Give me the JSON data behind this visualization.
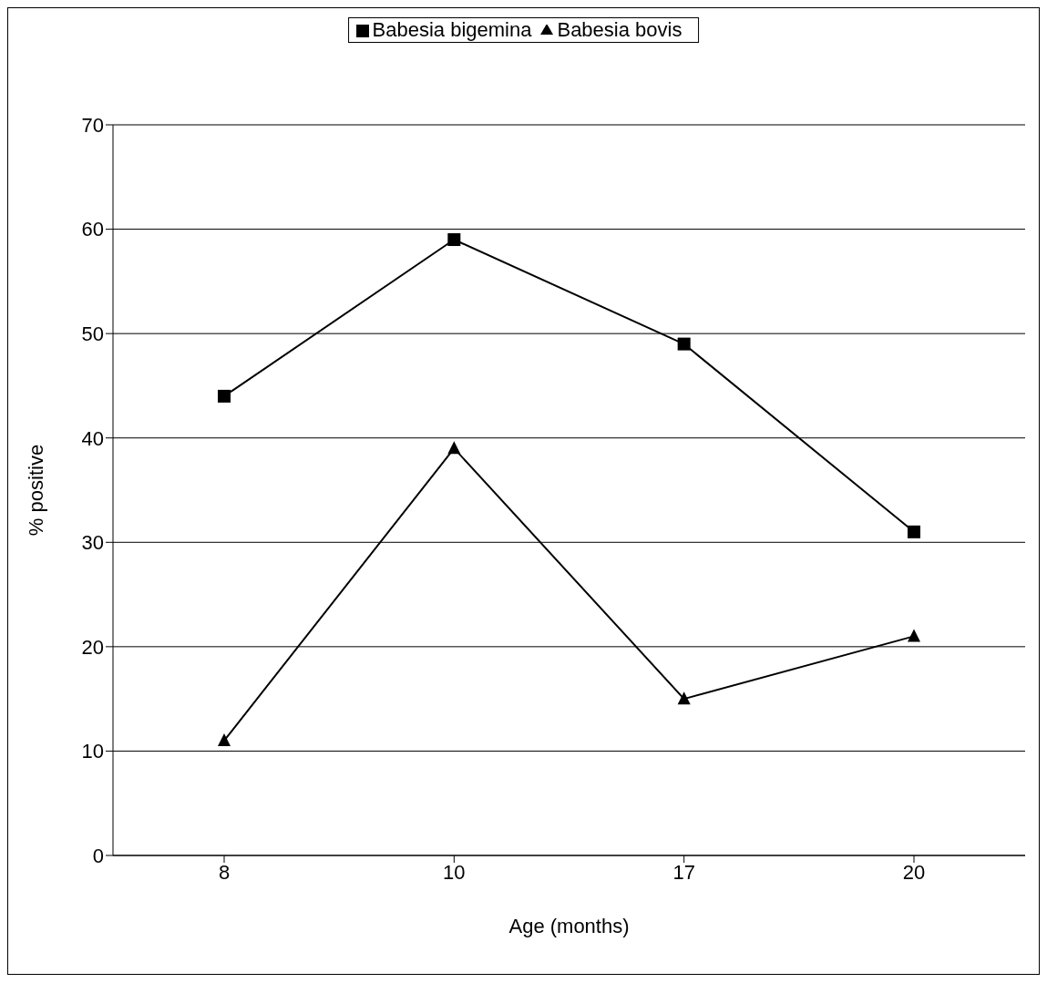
{
  "chart_data": {
    "type": "line",
    "xlabel": "Age (months)",
    "ylabel": "% positive",
    "categories": [
      "8",
      "10",
      "17",
      "20"
    ],
    "series": [
      {
        "name": "Babesia bigemina",
        "color": "#000000",
        "marker": "square",
        "values": [
          44,
          59,
          49,
          31
        ]
      },
      {
        "name": "Babesia bovis",
        "color": "#000000",
        "marker": "triangle",
        "values": [
          11,
          39,
          15,
          21
        ]
      }
    ],
    "ylim": [
      0,
      70
    ],
    "yticks": [
      0,
      10,
      20,
      30,
      40,
      50,
      60,
      70
    ],
    "grid": "y",
    "legend": "top"
  }
}
